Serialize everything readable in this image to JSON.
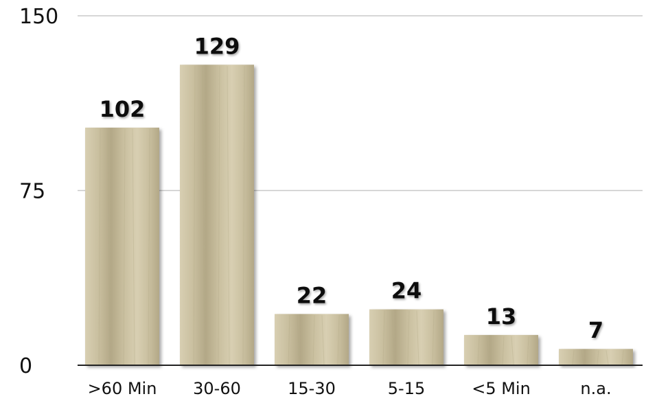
{
  "chart_data": {
    "type": "bar",
    "categories": [
      ">60 Min",
      "30-60",
      "15-30",
      "5-15",
      "<5 Min",
      "n.a."
    ],
    "values": [
      102,
      129,
      22,
      24,
      13,
      7
    ],
    "data_labels": [
      "102",
      "129",
      "22",
      "24",
      "13",
      "7"
    ],
    "title": "",
    "xlabel": "",
    "ylabel": "",
    "ylim": [
      0,
      150
    ],
    "yticks": [
      "0",
      "75",
      "150"
    ],
    "grid": true,
    "legend": "none"
  },
  "colors": {
    "bar_fill": "#c9bf9f",
    "bar_dark": "#b3a887",
    "bar_light": "#d8cfb2",
    "grid": "#c8c8c8",
    "axis": "#222222",
    "text": "#111111"
  }
}
